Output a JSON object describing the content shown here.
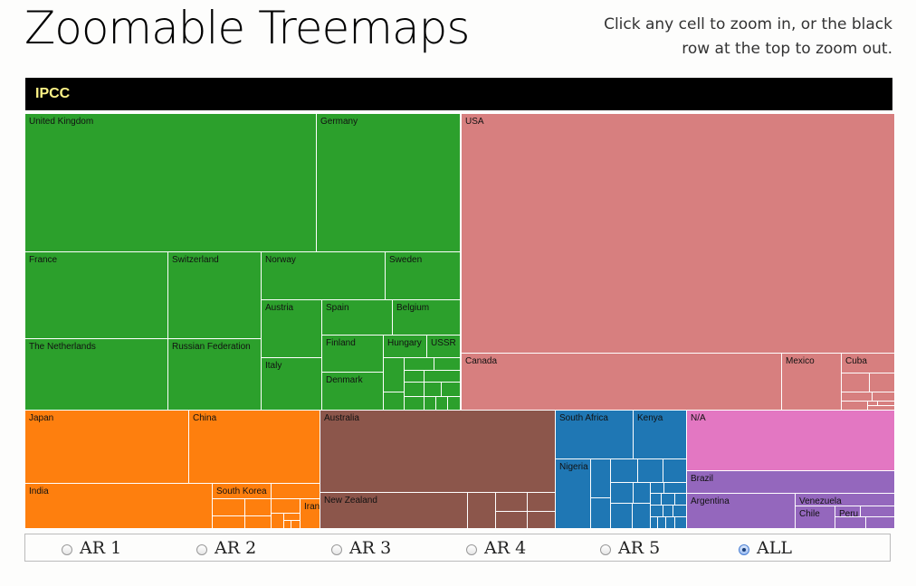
{
  "header": {
    "title": "Zoomable Treemaps",
    "instructions": "Click any cell to zoom in, or the black row at the top to zoom out."
  },
  "treemap": {
    "grandparent_label": "IPCC",
    "colors": {
      "green": "#2ca02c",
      "pink": "#d77f7f",
      "orange": "#fe7f0e",
      "brown": "#8c564b",
      "blue": "#1f77b4",
      "magenta": "#e377c2",
      "purple": "#9467bd",
      "grandparent_bg": "#000000",
      "grandparent_text": "#fdf387"
    },
    "labels": {
      "united_kingdom": "United Kingdom",
      "germany": "Germany",
      "usa": "USA",
      "france": "France",
      "switzerland": "Switzerland",
      "norway": "Norway",
      "sweden": "Sweden",
      "austria": "Austria",
      "spain": "Spain",
      "belgium": "Belgium",
      "the_netherlands": "The Netherlands",
      "russian_federation": "Russian Federation",
      "finland": "Finland",
      "hungary": "Hungary",
      "ussr": "USSR",
      "italy": "Italy",
      "denmark": "Denmark",
      "canada": "Canada",
      "mexico": "Mexico",
      "cuba": "Cuba",
      "japan": "Japan",
      "china": "China",
      "india": "India",
      "south_korea": "South Korea",
      "iran": "Iran",
      "australia": "Australia",
      "new_zealand": "New Zealand",
      "south_africa": "South Africa",
      "kenya": "Kenya",
      "nigeria": "Nigeria",
      "na": "N/A",
      "brazil": "Brazil",
      "argentina": "Argentina",
      "venezuela": "Venezuela",
      "chile": "Chile",
      "peru": "Peru"
    }
  },
  "assessment_selector": {
    "options": [
      {
        "label": "AR 1",
        "checked": false
      },
      {
        "label": "AR 2",
        "checked": false
      },
      {
        "label": "AR 3",
        "checked": false
      },
      {
        "label": "AR 4",
        "checked": false
      },
      {
        "label": "AR 5",
        "checked": false
      },
      {
        "label": "ALL",
        "checked": true
      }
    ]
  }
}
